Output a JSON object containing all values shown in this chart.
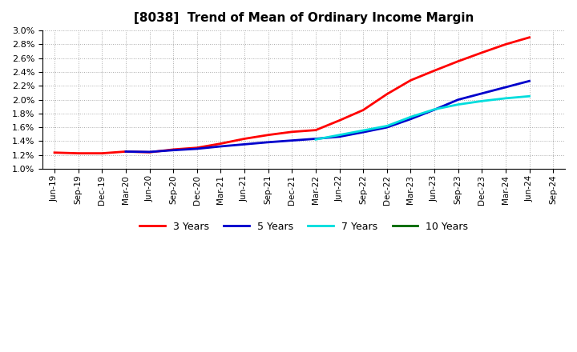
{
  "title": "[8038]  Trend of Mean of Ordinary Income Margin",
  "x_labels": [
    "Jun-19",
    "Sep-19",
    "Dec-19",
    "Mar-20",
    "Jun-20",
    "Sep-20",
    "Dec-20",
    "Mar-21",
    "Jun-21",
    "Sep-21",
    "Dec-21",
    "Mar-22",
    "Jun-22",
    "Sep-22",
    "Dec-22",
    "Mar-23",
    "Jun-23",
    "Sep-23",
    "Dec-23",
    "Mar-24",
    "Jun-24",
    "Sep-24"
  ],
  "ylim": [
    0.01,
    0.03
  ],
  "yticks": [
    0.01,
    0.012,
    0.014,
    0.016,
    0.018,
    0.02,
    0.022,
    0.024,
    0.026,
    0.028,
    0.03
  ],
  "series": {
    "3 Years": {
      "color": "#FF0000",
      "data_x": [
        0,
        1,
        2,
        3,
        4,
        5,
        6,
        7,
        8,
        9,
        10,
        11,
        12,
        13,
        14,
        15,
        16,
        17,
        18,
        19,
        20
      ],
      "data_y": [
        0.01235,
        0.01225,
        0.01225,
        0.0125,
        0.0124,
        0.0128,
        0.01305,
        0.01365,
        0.01435,
        0.0149,
        0.01535,
        0.0156,
        0.017,
        0.0185,
        0.0208,
        0.0228,
        0.0242,
        0.02555,
        0.0268,
        0.028,
        0.029
      ]
    },
    "5 Years": {
      "color": "#0000CC",
      "data_x": [
        3,
        4,
        5,
        6,
        7,
        8,
        9,
        10,
        11,
        12,
        13,
        14,
        15,
        16,
        17,
        18,
        19,
        20
      ],
      "data_y": [
        0.0125,
        0.01245,
        0.0127,
        0.0129,
        0.01325,
        0.01355,
        0.01385,
        0.0141,
        0.01435,
        0.01465,
        0.0153,
        0.016,
        0.0172,
        0.01855,
        0.02,
        0.0209,
        0.0218,
        0.0227
      ]
    },
    "7 Years": {
      "color": "#00DDDD",
      "data_x": [
        11,
        12,
        13,
        14,
        15,
        16,
        17,
        18,
        19,
        20
      ],
      "data_y": [
        0.01425,
        0.0149,
        0.01555,
        0.0162,
        0.0175,
        0.0186,
        0.0193,
        0.0198,
        0.0202,
        0.0205
      ]
    },
    "10 Years": {
      "color": "#006600",
      "data_x": [],
      "data_y": []
    }
  },
  "legend_labels": [
    "3 Years",
    "5 Years",
    "7 Years",
    "10 Years"
  ],
  "legend_colors": [
    "#FF0000",
    "#0000CC",
    "#00DDDD",
    "#006600"
  ],
  "background_color": "#FFFFFF",
  "grid_color": "#AAAAAA"
}
